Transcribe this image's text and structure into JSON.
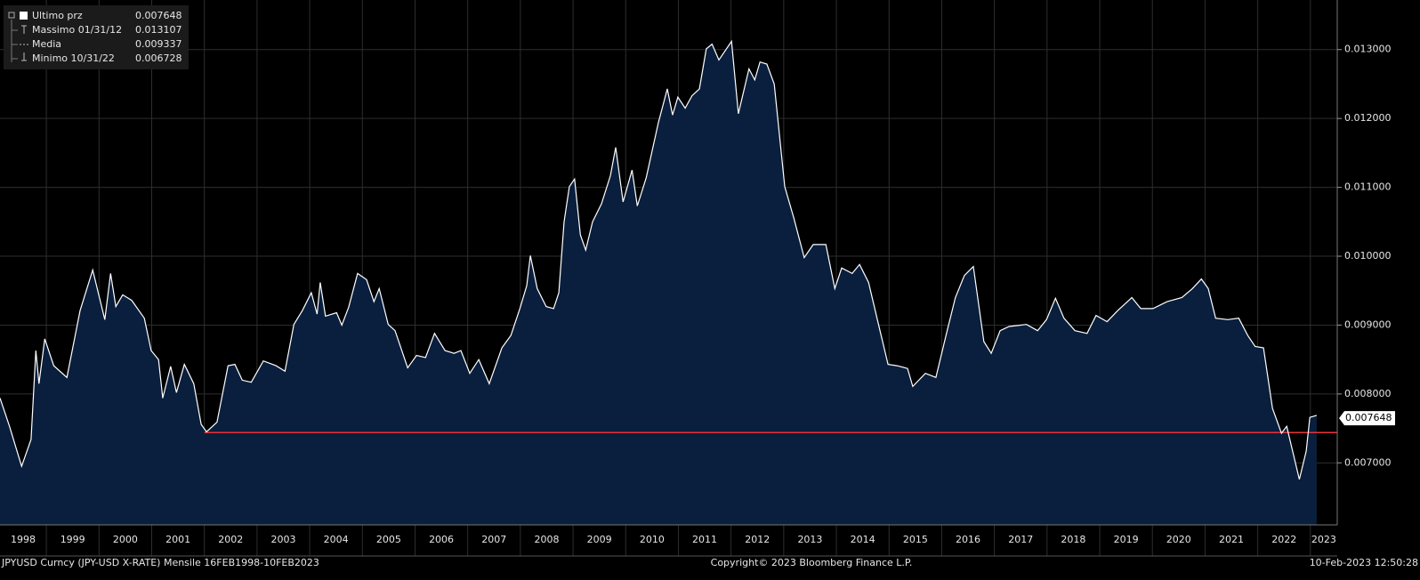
{
  "chart_data": {
    "type": "area",
    "legend": [
      {
        "label": "Ultimo prz",
        "value": 0.007648
      },
      {
        "label": "Massimo 01/31/12",
        "value": 0.013107
      },
      {
        "label": "Media",
        "value": 0.009337
      },
      {
        "label": "Minimo 10/31/22",
        "value": 0.006728
      }
    ],
    "footer_left": "JPYUSD Curncy (JPY-USD X-RATE)  Mensile 16FEB1998-10FEB2023",
    "footer_center": "Copyright© 2023 Bloomberg Finance L.P.",
    "footer_right": "10-Feb-2023 12:50:28",
    "line_color": "#ffffff",
    "fill_color": "#0a1f3d",
    "reference_line": {
      "value": 0.00744,
      "x_start": 2002.0,
      "color": "#e8313a"
    },
    "xlim": [
      1998.12,
      2023.51
    ],
    "xticks": [
      1998,
      1999,
      2000,
      2001,
      2002,
      2003,
      2004,
      2005,
      2006,
      2007,
      2008,
      2009,
      2010,
      2011,
      2012,
      2013,
      2014,
      2015,
      2016,
      2017,
      2018,
      2019,
      2020,
      2021,
      2022,
      2023
    ],
    "ylim": [
      0.0061,
      0.01372
    ],
    "yticks": [
      {
        "value": 0.007,
        "label": "0.007000"
      },
      {
        "value": 0.008,
        "label": "0.008000"
      },
      {
        "value": 0.009,
        "label": "0.009000"
      },
      {
        "value": 0.01,
        "label": "0.010000"
      },
      {
        "value": 0.011,
        "label": "0.011000"
      },
      {
        "value": 0.012,
        "label": "0.012000"
      },
      {
        "value": 0.013,
        "label": "0.013000"
      }
    ],
    "grid": true,
    "x": [
      1998.12,
      1998.3,
      1998.53,
      1998.71,
      1998.8,
      1998.86,
      1998.97,
      1999.14,
      1999.39,
      1999.64,
      1999.88,
      2000.11,
      2000.22,
      2000.32,
      2000.45,
      2000.62,
      2000.86,
      2000.99,
      2001.13,
      2001.21,
      2001.36,
      2001.47,
      2001.62,
      2001.8,
      2001.94,
      2002.04,
      2002.24,
      2002.45,
      2002.58,
      2002.72,
      2002.89,
      2003.12,
      2003.36,
      2003.53,
      2003.7,
      2003.86,
      2004.03,
      2004.14,
      2004.2,
      2004.3,
      2004.51,
      2004.61,
      2004.74,
      2004.91,
      2005.08,
      2005.22,
      2005.32,
      2005.49,
      2005.62,
      2005.86,
      2006.03,
      2006.2,
      2006.37,
      2006.57,
      2006.74,
      2006.87,
      2007.04,
      2007.21,
      2007.41,
      2007.65,
      2007.82,
      2007.99,
      2008.12,
      2008.19,
      2008.32,
      2008.49,
      2008.63,
      2008.73,
      2008.83,
      2008.93,
      2009.03,
      2009.14,
      2009.24,
      2009.37,
      2009.54,
      2009.71,
      2009.81,
      2009.95,
      2010.12,
      2010.22,
      2010.39,
      2010.62,
      2010.79,
      2010.89,
      2010.99,
      2011.13,
      2011.26,
      2011.4,
      2011.53,
      2011.64,
      2011.77,
      2012.01,
      2012.14,
      2012.34,
      2012.45,
      2012.55,
      2012.68,
      2012.82,
      2013.02,
      2013.19,
      2013.39,
      2013.56,
      2013.8,
      2013.97,
      2014.1,
      2014.3,
      2014.44,
      2014.61,
      2014.84,
      2014.98,
      2015.15,
      2015.35,
      2015.45,
      2015.69,
      2015.89,
      2016.09,
      2016.26,
      2016.43,
      2016.6,
      2016.8,
      2016.94,
      2017.11,
      2017.28,
      2017.61,
      2017.82,
      2017.99,
      2018.16,
      2018.32,
      2018.53,
      2018.76,
      2018.93,
      2019.14,
      2019.34,
      2019.61,
      2019.78,
      2020.01,
      2020.28,
      2020.56,
      2020.76,
      2020.93,
      2021.06,
      2021.2,
      2021.43,
      2021.64,
      2021.81,
      2021.95,
      2022.11,
      2022.28,
      2022.45,
      2022.55,
      2022.79,
      2022.92,
      2022.99,
      2023.12
    ],
    "values": [
      0.00794,
      0.00753,
      0.00695,
      0.00734,
      0.00863,
      0.00815,
      0.0088,
      0.00841,
      0.00824,
      0.00921,
      0.0098,
      0.00908,
      0.00975,
      0.00927,
      0.00944,
      0.00936,
      0.0091,
      0.00863,
      0.0085,
      0.00794,
      0.0084,
      0.00802,
      0.00843,
      0.00815,
      0.00756,
      0.00745,
      0.00759,
      0.00841,
      0.00843,
      0.0082,
      0.00817,
      0.00848,
      0.00841,
      0.00833,
      0.00901,
      0.00921,
      0.00947,
      0.00916,
      0.00962,
      0.00913,
      0.00918,
      0.009,
      0.00926,
      0.00975,
      0.00966,
      0.00934,
      0.00953,
      0.00901,
      0.00892,
      0.00838,
      0.00856,
      0.00853,
      0.00888,
      0.00863,
      0.00859,
      0.00863,
      0.0083,
      0.0085,
      0.00815,
      0.00867,
      0.00885,
      0.00924,
      0.00957,
      0.01001,
      0.00953,
      0.00927,
      0.00924,
      0.00947,
      0.0105,
      0.01101,
      0.01112,
      0.01031,
      0.01009,
      0.0105,
      0.01076,
      0.01117,
      0.01158,
      0.01079,
      0.01125,
      0.01073,
      0.01114,
      0.01194,
      0.01243,
      0.01205,
      0.01231,
      0.01215,
      0.01233,
      0.01243,
      0.01301,
      0.01308,
      0.01285,
      0.01312,
      0.01207,
      0.01272,
      0.01256,
      0.01282,
      0.01279,
      0.0125,
      0.01101,
      0.01056,
      0.00998,
      0.01017,
      0.01017,
      0.00953,
      0.00983,
      0.00975,
      0.00988,
      0.00962,
      0.00888,
      0.00843,
      0.00841,
      0.00837,
      0.00811,
      0.0083,
      0.00824,
      0.00888,
      0.0094,
      0.00972,
      0.00985,
      0.00876,
      0.00859,
      0.00892,
      0.00898,
      0.00901,
      0.00892,
      0.00908,
      0.00939,
      0.0091,
      0.00892,
      0.00888,
      0.00914,
      0.00905,
      0.00921,
      0.0094,
      0.00924,
      0.00924,
      0.00934,
      0.0094,
      0.00953,
      0.00967,
      0.00953,
      0.0091,
      0.00908,
      0.0091,
      0.00885,
      0.00869,
      0.00867,
      0.00779,
      0.00743,
      0.00753,
      0.00676,
      0.00717,
      0.00766,
      0.00769
    ]
  }
}
